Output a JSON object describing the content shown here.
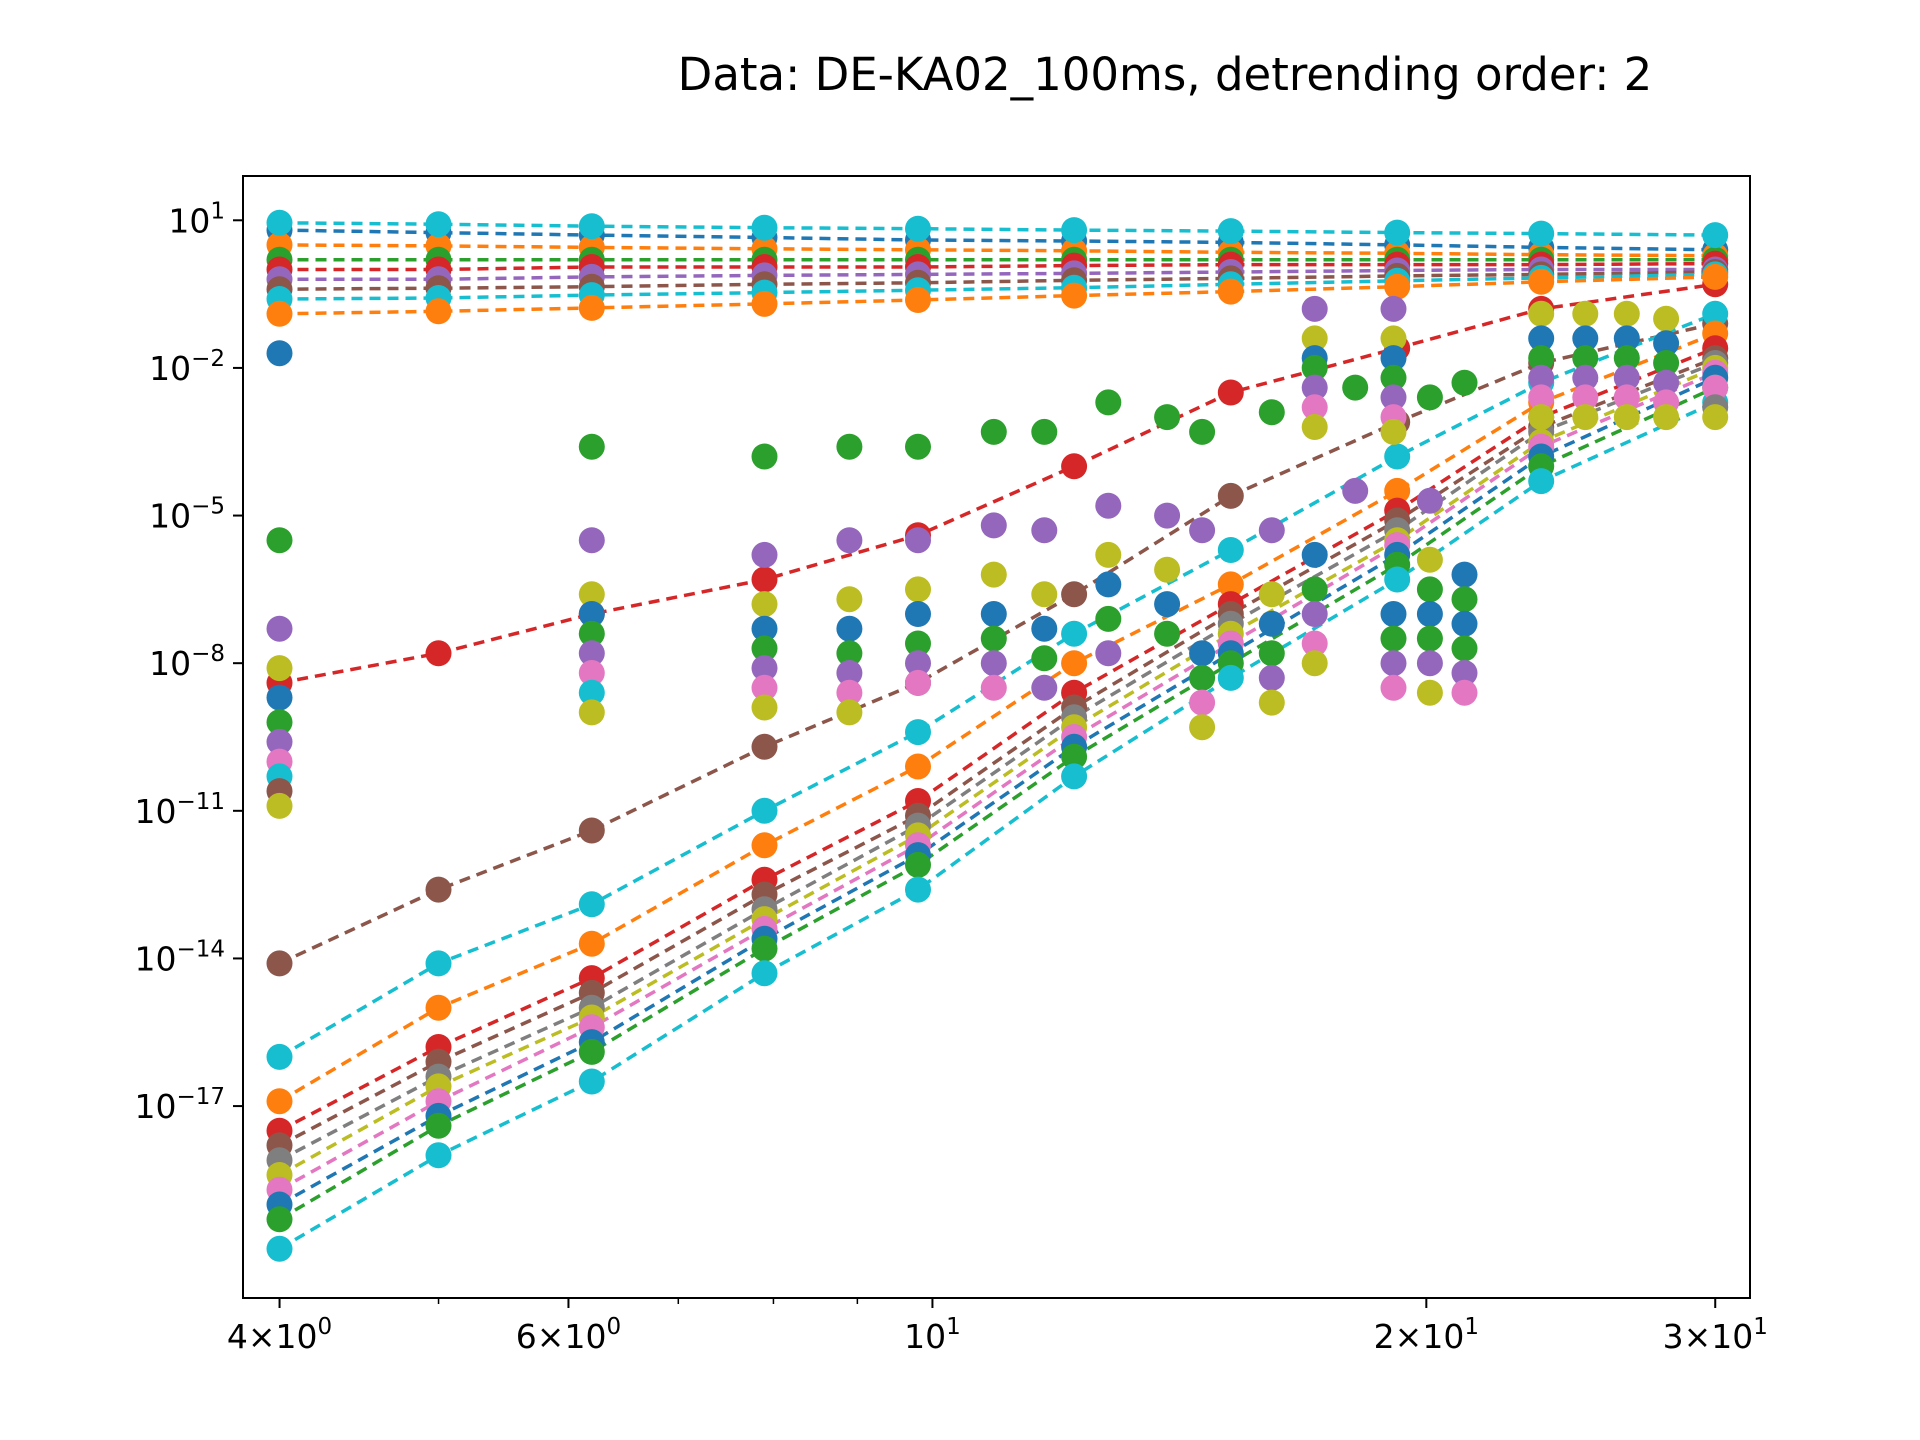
{
  "chart_data": {
    "type": "scatter",
    "title": "Data: DE-KA02_100ms, detrending order: 2",
    "xlabel": "",
    "ylabel": "",
    "x_scale": "log",
    "y_scale": "log",
    "xlim": [
      3.8,
      31.5
    ],
    "ylim_exp": [
      -20.9,
      1.9
    ],
    "grid": false,
    "legend": "none",
    "x_ticks": [
      {
        "value": 4,
        "mant": "4",
        "exp": "0"
      },
      {
        "value": 6,
        "mant": "6",
        "exp": "0"
      },
      {
        "value": 10,
        "mant": "",
        "exp": "1"
      },
      {
        "value": 20,
        "mant": "2",
        "exp": "1"
      },
      {
        "value": 30,
        "mant": "3",
        "exp": "1"
      }
    ],
    "x_minor_ticks": [
      5,
      7,
      8,
      9
    ],
    "y_ticks_exp": [
      1,
      -2,
      -5,
      -8,
      -11,
      -14,
      -17
    ],
    "x": [
      4,
      5,
      6.2,
      7.9,
      9.8,
      12.2,
      15.2,
      19.2,
      23.5,
      30
    ],
    "series_colors": [
      "#1f77b4",
      "#ff7f0e",
      "#2ca02c",
      "#d62728",
      "#9467bd",
      "#8c564b",
      "#e377c2",
      "#7f7f7f",
      "#bcbd22",
      "#17becf"
    ],
    "series": [
      {
        "color": "#d62728",
        "log10_y": [
          -8.4,
          -7.8,
          -7.0,
          -6.3,
          -5.4,
          -4.0,
          -2.5,
          -1.6,
          -0.8,
          -0.3
        ]
      },
      {
        "color": "#8c564b",
        "log10_y": [
          -14.1,
          -12.6,
          -11.4,
          -9.7,
          -8.4,
          -6.6,
          -4.6,
          -3.1,
          -1.9,
          -1.1
        ]
      },
      {
        "color": "#17becf",
        "log10_y": [
          -16.0,
          -14.1,
          -12.9,
          -11.0,
          -9.4,
          -7.4,
          -5.7,
          -3.8,
          -2.3,
          -0.9
        ]
      },
      {
        "color": "#ff7f0e",
        "log10_y": [
          -16.9,
          -15.0,
          -13.7,
          -11.7,
          -10.1,
          -8.0,
          -6.4,
          -4.5,
          -2.7,
          -1.3
        ]
      },
      {
        "color": "#d62728",
        "log10_y": [
          -17.5,
          -15.8,
          -14.4,
          -12.4,
          -10.8,
          -8.6,
          -6.8,
          -4.9,
          -3.0,
          -1.6
        ]
      },
      {
        "color": "#8c564b",
        "log10_y": [
          -17.8,
          -16.1,
          -14.7,
          -12.7,
          -11.1,
          -8.9,
          -7.0,
          -5.1,
          -3.2,
          -1.8
        ]
      },
      {
        "color": "#7f7f7f",
        "log10_y": [
          -18.1,
          -16.4,
          -15.0,
          -13.0,
          -11.3,
          -9.1,
          -7.2,
          -5.3,
          -3.3,
          -1.9
        ]
      },
      {
        "color": "#bcbd22",
        "log10_y": [
          -18.4,
          -16.6,
          -15.2,
          -13.2,
          -11.5,
          -9.3,
          -7.4,
          -5.5,
          -3.5,
          -2.0
        ]
      },
      {
        "color": "#e377c2",
        "log10_y": [
          -18.7,
          -16.9,
          -15.4,
          -13.4,
          -11.7,
          -9.5,
          -7.6,
          -5.6,
          -3.6,
          -2.1
        ]
      },
      {
        "color": "#1f77b4",
        "log10_y": [
          -19.0,
          -17.2,
          -15.7,
          -13.6,
          -11.9,
          -9.7,
          -7.8,
          -5.8,
          -3.8,
          -2.2
        ]
      },
      {
        "color": "#2ca02c",
        "log10_y": [
          -19.3,
          -17.4,
          -15.9,
          -13.8,
          -12.1,
          -9.9,
          -8.0,
          -6.0,
          -4.0,
          -2.4
        ]
      },
      {
        "color": "#17becf",
        "log10_y": [
          -19.9,
          -18.0,
          -16.5,
          -14.3,
          -12.6,
          -10.3,
          -8.3,
          -6.3,
          -4.3,
          -2.7
        ]
      },
      {
        "color": "#1f77b4",
        "log10_y": [
          0.8,
          0.75,
          0.7,
          0.65,
          0.6,
          0.58,
          0.55,
          0.5,
          0.45,
          0.4
        ]
      },
      {
        "color": "#ff7f0e",
        "log10_y": [
          0.5,
          0.48,
          0.45,
          0.42,
          0.4,
          0.38,
          0.35,
          0.33,
          0.3,
          0.28
        ]
      },
      {
        "color": "#2ca02c",
        "log10_y": [
          0.2,
          0.2,
          0.2,
          0.2,
          0.2,
          0.2,
          0.2,
          0.2,
          0.2,
          0.2
        ]
      },
      {
        "color": "#d62728",
        "log10_y": [
          0.0,
          0.0,
          0.05,
          0.05,
          0.05,
          0.08,
          0.1,
          0.1,
          0.1,
          0.12
        ]
      },
      {
        "color": "#9467bd",
        "log10_y": [
          -0.2,
          -0.2,
          -0.15,
          -0.12,
          -0.1,
          -0.08,
          -0.05,
          -0.02,
          0.0,
          0.0
        ]
      },
      {
        "color": "#8c564b",
        "log10_y": [
          -0.4,
          -0.38,
          -0.35,
          -0.3,
          -0.27,
          -0.22,
          -0.18,
          -0.13,
          -0.1,
          -0.05
        ]
      },
      {
        "color": "#17becf",
        "log10_y": [
          -0.6,
          -0.58,
          -0.52,
          -0.47,
          -0.42,
          -0.37,
          -0.3,
          -0.23,
          -0.17,
          -0.1
        ]
      },
      {
        "color": "#ff7f0e",
        "log10_y": [
          -0.9,
          -0.85,
          -0.78,
          -0.7,
          -0.62,
          -0.53,
          -0.45,
          -0.35,
          -0.25,
          -0.15
        ]
      },
      {
        "color": "#17becf",
        "log10_y": [
          0.95,
          0.92,
          0.88,
          0.85,
          0.83,
          0.8,
          0.78,
          0.75,
          0.73,
          0.7
        ]
      }
    ],
    "scatter_points": [
      {
        "x": 4,
        "log10_y": -1.7,
        "color": "#1f77b4"
      },
      {
        "x": 4,
        "log10_y": -5.5,
        "color": "#2ca02c"
      },
      {
        "x": 4,
        "log10_y": -7.3,
        "color": "#9467bd"
      },
      {
        "x": 4,
        "log10_y": -8.1,
        "color": "#bcbd22"
      },
      {
        "x": 4,
        "log10_y": -8.7,
        "color": "#1f77b4"
      },
      {
        "x": 4,
        "log10_y": -9.2,
        "color": "#2ca02c"
      },
      {
        "x": 4,
        "log10_y": -9.6,
        "color": "#9467bd"
      },
      {
        "x": 4,
        "log10_y": -10.0,
        "color": "#e377c2"
      },
      {
        "x": 4,
        "log10_y": -10.3,
        "color": "#17becf"
      },
      {
        "x": 4,
        "log10_y": -10.6,
        "color": "#8c564b"
      },
      {
        "x": 4,
        "log10_y": -10.9,
        "color": "#bcbd22"
      },
      {
        "x": 6.2,
        "log10_y": -3.6,
        "color": "#2ca02c"
      },
      {
        "x": 6.2,
        "log10_y": -5.5,
        "color": "#9467bd"
      },
      {
        "x": 6.2,
        "log10_y": -6.6,
        "color": "#bcbd22"
      },
      {
        "x": 6.2,
        "log10_y": -7.0,
        "color": "#1f77b4"
      },
      {
        "x": 6.2,
        "log10_y": -7.4,
        "color": "#2ca02c"
      },
      {
        "x": 6.2,
        "log10_y": -7.8,
        "color": "#9467bd"
      },
      {
        "x": 6.2,
        "log10_y": -8.2,
        "color": "#e377c2"
      },
      {
        "x": 6.2,
        "log10_y": -8.6,
        "color": "#17becf"
      },
      {
        "x": 6.2,
        "log10_y": -9.0,
        "color": "#bcbd22"
      },
      {
        "x": 7.9,
        "log10_y": -3.8,
        "color": "#2ca02c"
      },
      {
        "x": 7.9,
        "log10_y": -5.8,
        "color": "#9467bd"
      },
      {
        "x": 7.9,
        "log10_y": -6.8,
        "color": "#bcbd22"
      },
      {
        "x": 7.9,
        "log10_y": -7.3,
        "color": "#1f77b4"
      },
      {
        "x": 7.9,
        "log10_y": -7.7,
        "color": "#2ca02c"
      },
      {
        "x": 7.9,
        "log10_y": -8.1,
        "color": "#9467bd"
      },
      {
        "x": 7.9,
        "log10_y": -8.5,
        "color": "#e377c2"
      },
      {
        "x": 7.9,
        "log10_y": -8.9,
        "color": "#bcbd22"
      },
      {
        "x": 8.9,
        "log10_y": -3.6,
        "color": "#2ca02c"
      },
      {
        "x": 8.9,
        "log10_y": -5.5,
        "color": "#9467bd"
      },
      {
        "x": 8.9,
        "log10_y": -6.7,
        "color": "#bcbd22"
      },
      {
        "x": 8.9,
        "log10_y": -7.3,
        "color": "#1f77b4"
      },
      {
        "x": 8.9,
        "log10_y": -7.8,
        "color": "#2ca02c"
      },
      {
        "x": 8.9,
        "log10_y": -8.2,
        "color": "#9467bd"
      },
      {
        "x": 8.9,
        "log10_y": -8.6,
        "color": "#e377c2"
      },
      {
        "x": 8.9,
        "log10_y": -9.0,
        "color": "#bcbd22"
      },
      {
        "x": 9.8,
        "log10_y": -3.6,
        "color": "#2ca02c"
      },
      {
        "x": 9.8,
        "log10_y": -5.5,
        "color": "#9467bd"
      },
      {
        "x": 9.8,
        "log10_y": -6.5,
        "color": "#bcbd22"
      },
      {
        "x": 9.8,
        "log10_y": -7.0,
        "color": "#1f77b4"
      },
      {
        "x": 9.8,
        "log10_y": -7.6,
        "color": "#2ca02c"
      },
      {
        "x": 9.8,
        "log10_y": -8.0,
        "color": "#9467bd"
      },
      {
        "x": 9.8,
        "log10_y": -8.4,
        "color": "#e377c2"
      },
      {
        "x": 10.9,
        "log10_y": -3.3,
        "color": "#2ca02c"
      },
      {
        "x": 10.9,
        "log10_y": -5.2,
        "color": "#9467bd"
      },
      {
        "x": 10.9,
        "log10_y": -6.2,
        "color": "#bcbd22"
      },
      {
        "x": 10.9,
        "log10_y": -7.0,
        "color": "#1f77b4"
      },
      {
        "x": 10.9,
        "log10_y": -7.5,
        "color": "#2ca02c"
      },
      {
        "x": 10.9,
        "log10_y": -8.0,
        "color": "#9467bd"
      },
      {
        "x": 10.9,
        "log10_y": -8.5,
        "color": "#e377c2"
      },
      {
        "x": 11.7,
        "log10_y": -3.3,
        "color": "#2ca02c"
      },
      {
        "x": 11.7,
        "log10_y": -5.3,
        "color": "#9467bd"
      },
      {
        "x": 11.7,
        "log10_y": -6.6,
        "color": "#bcbd22"
      },
      {
        "x": 11.7,
        "log10_y": -7.3,
        "color": "#1f77b4"
      },
      {
        "x": 11.7,
        "log10_y": -7.9,
        "color": "#2ca02c"
      },
      {
        "x": 11.7,
        "log10_y": -8.5,
        "color": "#9467bd"
      },
      {
        "x": 12.8,
        "log10_y": -2.7,
        "color": "#2ca02c"
      },
      {
        "x": 12.8,
        "log10_y": -4.8,
        "color": "#9467bd"
      },
      {
        "x": 12.8,
        "log10_y": -5.8,
        "color": "#bcbd22"
      },
      {
        "x": 12.8,
        "log10_y": -6.4,
        "color": "#1f77b4"
      },
      {
        "x": 12.8,
        "log10_y": -7.1,
        "color": "#2ca02c"
      },
      {
        "x": 12.8,
        "log10_y": -7.8,
        "color": "#9467bd"
      },
      {
        "x": 13.9,
        "log10_y": -3.0,
        "color": "#2ca02c"
      },
      {
        "x": 13.9,
        "log10_y": -5.0,
        "color": "#9467bd"
      },
      {
        "x": 13.9,
        "log10_y": -6.1,
        "color": "#bcbd22"
      },
      {
        "x": 13.9,
        "log10_y": -6.8,
        "color": "#1f77b4"
      },
      {
        "x": 13.9,
        "log10_y": -7.4,
        "color": "#2ca02c"
      },
      {
        "x": 14.6,
        "log10_y": -3.3,
        "color": "#2ca02c"
      },
      {
        "x": 14.6,
        "log10_y": -5.3,
        "color": "#9467bd"
      },
      {
        "x": 14.6,
        "log10_y": -7.8,
        "color": "#1f77b4"
      },
      {
        "x": 14.6,
        "log10_y": -8.3,
        "color": "#2ca02c"
      },
      {
        "x": 14.6,
        "log10_y": -8.8,
        "color": "#e377c2"
      },
      {
        "x": 14.6,
        "log10_y": -9.3,
        "color": "#bcbd22"
      },
      {
        "x": 16.1,
        "log10_y": -2.9,
        "color": "#2ca02c"
      },
      {
        "x": 16.1,
        "log10_y": -5.3,
        "color": "#9467bd"
      },
      {
        "x": 16.1,
        "log10_y": -6.6,
        "color": "#bcbd22"
      },
      {
        "x": 16.1,
        "log10_y": -7.2,
        "color": "#1f77b4"
      },
      {
        "x": 16.1,
        "log10_y": -7.8,
        "color": "#2ca02c"
      },
      {
        "x": 16.1,
        "log10_y": -8.3,
        "color": "#9467bd"
      },
      {
        "x": 16.1,
        "log10_y": -8.8,
        "color": "#bcbd22"
      },
      {
        "x": 17.1,
        "log10_y": -0.8,
        "color": "#9467bd"
      },
      {
        "x": 17.1,
        "log10_y": -1.4,
        "color": "#bcbd22"
      },
      {
        "x": 17.1,
        "log10_y": -1.8,
        "color": "#1f77b4"
      },
      {
        "x": 17.1,
        "log10_y": -2.0,
        "color": "#2ca02c"
      },
      {
        "x": 17.1,
        "log10_y": -2.4,
        "color": "#9467bd"
      },
      {
        "x": 17.1,
        "log10_y": -2.8,
        "color": "#e377c2"
      },
      {
        "x": 17.1,
        "log10_y": -3.2,
        "color": "#bcbd22"
      },
      {
        "x": 17.1,
        "log10_y": -5.8,
        "color": "#1f77b4"
      },
      {
        "x": 17.1,
        "log10_y": -6.5,
        "color": "#2ca02c"
      },
      {
        "x": 17.1,
        "log10_y": -7.0,
        "color": "#9467bd"
      },
      {
        "x": 17.1,
        "log10_y": -7.6,
        "color": "#e377c2"
      },
      {
        "x": 17.1,
        "log10_y": -8.0,
        "color": "#bcbd22"
      },
      {
        "x": 18.1,
        "log10_y": -2.4,
        "color": "#2ca02c"
      },
      {
        "x": 18.1,
        "log10_y": -4.5,
        "color": "#9467bd"
      },
      {
        "x": 19.1,
        "log10_y": -0.8,
        "color": "#9467bd"
      },
      {
        "x": 19.1,
        "log10_y": -1.4,
        "color": "#bcbd22"
      },
      {
        "x": 19.1,
        "log10_y": -1.8,
        "color": "#1f77b4"
      },
      {
        "x": 19.1,
        "log10_y": -2.2,
        "color": "#2ca02c"
      },
      {
        "x": 19.1,
        "log10_y": -2.6,
        "color": "#9467bd"
      },
      {
        "x": 19.1,
        "log10_y": -3.0,
        "color": "#e377c2"
      },
      {
        "x": 19.1,
        "log10_y": -3.3,
        "color": "#bcbd22"
      },
      {
        "x": 19.1,
        "log10_y": -7.0,
        "color": "#1f77b4"
      },
      {
        "x": 19.1,
        "log10_y": -7.5,
        "color": "#2ca02c"
      },
      {
        "x": 19.1,
        "log10_y": -8.0,
        "color": "#9467bd"
      },
      {
        "x": 19.1,
        "log10_y": -8.5,
        "color": "#e377c2"
      },
      {
        "x": 20.1,
        "log10_y": -2.6,
        "color": "#2ca02c"
      },
      {
        "x": 20.1,
        "log10_y": -4.7,
        "color": "#9467bd"
      },
      {
        "x": 20.1,
        "log10_y": -5.9,
        "color": "#bcbd22"
      },
      {
        "x": 20.1,
        "log10_y": -6.5,
        "color": "#2ca02c"
      },
      {
        "x": 20.1,
        "log10_y": -7.0,
        "color": "#1f77b4"
      },
      {
        "x": 20.1,
        "log10_y": -7.5,
        "color": "#2ca02c"
      },
      {
        "x": 20.1,
        "log10_y": -8.0,
        "color": "#9467bd"
      },
      {
        "x": 20.1,
        "log10_y": -8.6,
        "color": "#bcbd22"
      },
      {
        "x": 21.1,
        "log10_y": -2.3,
        "color": "#2ca02c"
      },
      {
        "x": 21.1,
        "log10_y": -6.2,
        "color": "#1f77b4"
      },
      {
        "x": 21.1,
        "log10_y": -6.7,
        "color": "#2ca02c"
      },
      {
        "x": 21.1,
        "log10_y": -7.2,
        "color": "#1f77b4"
      },
      {
        "x": 21.1,
        "log10_y": -7.7,
        "color": "#2ca02c"
      },
      {
        "x": 21.1,
        "log10_y": -8.2,
        "color": "#9467bd"
      },
      {
        "x": 21.1,
        "log10_y": -8.6,
        "color": "#e377c2"
      },
      {
        "x": 23.5,
        "log10_y": -0.9,
        "color": "#bcbd22"
      },
      {
        "x": 23.5,
        "log10_y": -1.4,
        "color": "#1f77b4"
      },
      {
        "x": 23.5,
        "log10_y": -1.8,
        "color": "#2ca02c"
      },
      {
        "x": 23.5,
        "log10_y": -2.2,
        "color": "#9467bd"
      },
      {
        "x": 23.5,
        "log10_y": -2.6,
        "color": "#e377c2"
      },
      {
        "x": 23.5,
        "log10_y": -3.0,
        "color": "#bcbd22"
      },
      {
        "x": 25.0,
        "log10_y": -0.9,
        "color": "#bcbd22"
      },
      {
        "x": 25.0,
        "log10_y": -1.4,
        "color": "#1f77b4"
      },
      {
        "x": 25.0,
        "log10_y": -1.8,
        "color": "#2ca02c"
      },
      {
        "x": 25.0,
        "log10_y": -2.2,
        "color": "#9467bd"
      },
      {
        "x": 25.0,
        "log10_y": -2.6,
        "color": "#e377c2"
      },
      {
        "x": 25.0,
        "log10_y": -3.0,
        "color": "#bcbd22"
      },
      {
        "x": 26.5,
        "log10_y": -0.9,
        "color": "#bcbd22"
      },
      {
        "x": 26.5,
        "log10_y": -1.4,
        "color": "#1f77b4"
      },
      {
        "x": 26.5,
        "log10_y": -1.8,
        "color": "#2ca02c"
      },
      {
        "x": 26.5,
        "log10_y": -2.2,
        "color": "#9467bd"
      },
      {
        "x": 26.5,
        "log10_y": -2.6,
        "color": "#e377c2"
      },
      {
        "x": 26.5,
        "log10_y": -3.0,
        "color": "#bcbd22"
      },
      {
        "x": 28.0,
        "log10_y": -1.0,
        "color": "#bcbd22"
      },
      {
        "x": 28.0,
        "log10_y": -1.5,
        "color": "#1f77b4"
      },
      {
        "x": 28.0,
        "log10_y": -1.9,
        "color": "#2ca02c"
      },
      {
        "x": 28.0,
        "log10_y": -2.3,
        "color": "#9467bd"
      },
      {
        "x": 28.0,
        "log10_y": -2.7,
        "color": "#e377c2"
      },
      {
        "x": 28.0,
        "log10_y": -3.0,
        "color": "#bcbd22"
      },
      {
        "x": 30.0,
        "log10_y": -2.4,
        "color": "#e377c2"
      },
      {
        "x": 30.0,
        "log10_y": -2.8,
        "color": "#7f7f7f"
      },
      {
        "x": 30.0,
        "log10_y": -3.0,
        "color": "#bcbd22"
      }
    ]
  }
}
